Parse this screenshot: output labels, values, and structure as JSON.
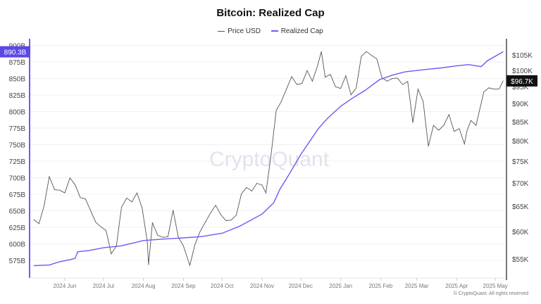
{
  "chart_data": {
    "type": "line",
    "title": "Bitcoin: Realized Cap",
    "legend": [
      "Price USD",
      "Realized Cap"
    ],
    "legend_placement": "top-center",
    "colors": {
      "price": "#555555",
      "realized_cap": "#6a5cf5",
      "left_badge": "#5b48e8",
      "right_badge": "#111111"
    },
    "watermark": "CryptoQuant",
    "footer": "© CryptoQuant. All rights reserved",
    "left_axis": {
      "label": "Realized Cap",
      "ticks": [
        "900B",
        "875B",
        "850B",
        "825B",
        "800B",
        "775B",
        "750B",
        "725B",
        "700B",
        "675B",
        "650B",
        "625B",
        "600B",
        "575B"
      ],
      "tick_values": [
        900,
        875,
        850,
        825,
        800,
        775,
        750,
        725,
        700,
        675,
        650,
        625,
        600,
        575
      ],
      "unit": "B USD",
      "current_label": "890.3B"
    },
    "right_axis": {
      "label": "Price USD",
      "scale": "log",
      "ticks": [
        "$105K",
        "$100K",
        "$95K",
        "$90K",
        "$85K",
        "$80K",
        "$75K",
        "$70K",
        "$65K",
        "$60K",
        "$55K"
      ],
      "tick_values": [
        105,
        100,
        95,
        90,
        85,
        80,
        75,
        70,
        65,
        60,
        55
      ],
      "unit": "K USD",
      "current_label": "$96.7K"
    },
    "x_ticks": [
      {
        "label": "2024 Jun",
        "date": "2024-06-01"
      },
      {
        "label": "2024 Jul",
        "date": "2024-07-01"
      },
      {
        "label": "2024 Aug",
        "date": "2024-08-01"
      },
      {
        "label": "2024 Sep",
        "date": "2024-09-01"
      },
      {
        "label": "2024 Oct",
        "date": "2024-10-01"
      },
      {
        "label": "2024 Nov",
        "date": "2024-11-01"
      },
      {
        "label": "2024 Dec",
        "date": "2024-12-01"
      },
      {
        "label": "2025 Jan",
        "date": "2025-01-01"
      },
      {
        "label": "2025 Feb",
        "date": "2025-02-01"
      },
      {
        "label": "2025 Mar",
        "date": "2025-03-01"
      },
      {
        "label": "2025 Apr",
        "date": "2025-04-01"
      },
      {
        "label": "2025 May",
        "date": "2025-05-01"
      }
    ],
    "series": [
      {
        "name": "Price USD",
        "unit": "K USD",
        "points": [
          [
            "2024-05-08",
            62.3
          ],
          [
            "2024-05-12",
            61.5
          ],
          [
            "2024-05-16",
            65.2
          ],
          [
            "2024-05-20",
            71.4
          ],
          [
            "2024-05-24",
            68.5
          ],
          [
            "2024-05-28",
            68.4
          ],
          [
            "2024-06-01",
            67.8
          ],
          [
            "2024-06-05",
            71.1
          ],
          [
            "2024-06-09",
            69.6
          ],
          [
            "2024-06-13",
            66.8
          ],
          [
            "2024-06-17",
            66.5
          ],
          [
            "2024-06-21",
            64.1
          ],
          [
            "2024-06-25",
            61.8
          ],
          [
            "2024-06-29",
            60.9
          ],
          [
            "2024-07-03",
            60.2
          ],
          [
            "2024-07-07",
            55.9
          ],
          [
            "2024-07-11",
            57.3
          ],
          [
            "2024-07-15",
            64.8
          ],
          [
            "2024-07-19",
            66.7
          ],
          [
            "2024-07-23",
            65.9
          ],
          [
            "2024-07-27",
            67.8
          ],
          [
            "2024-07-31",
            64.6
          ],
          [
            "2024-08-04",
            58.1
          ],
          [
            "2024-08-05",
            54.0
          ],
          [
            "2024-08-08",
            61.7
          ],
          [
            "2024-08-12",
            59.3
          ],
          [
            "2024-08-16",
            58.9
          ],
          [
            "2024-08-20",
            59.0
          ],
          [
            "2024-08-24",
            64.2
          ],
          [
            "2024-08-28",
            59.0
          ],
          [
            "2024-09-01",
            57.3
          ],
          [
            "2024-09-06",
            53.9
          ],
          [
            "2024-09-10",
            57.6
          ],
          [
            "2024-09-14",
            60.0
          ],
          [
            "2024-09-18",
            61.8
          ],
          [
            "2024-09-22",
            63.6
          ],
          [
            "2024-09-26",
            65.2
          ],
          [
            "2024-09-30",
            63.3
          ],
          [
            "2024-10-04",
            62.1
          ],
          [
            "2024-10-08",
            62.2
          ],
          [
            "2024-10-12",
            63.2
          ],
          [
            "2024-10-16",
            67.6
          ],
          [
            "2024-10-20",
            69.0
          ],
          [
            "2024-10-24",
            68.2
          ],
          [
            "2024-10-28",
            69.9
          ],
          [
            "2024-11-01",
            69.5
          ],
          [
            "2024-11-04",
            67.8
          ],
          [
            "2024-11-08",
            76.5
          ],
          [
            "2024-11-12",
            88.0
          ],
          [
            "2024-11-16",
            90.6
          ],
          [
            "2024-11-20",
            94.3
          ],
          [
            "2024-11-24",
            98.0
          ],
          [
            "2024-11-28",
            95.6
          ],
          [
            "2024-12-02",
            95.9
          ],
          [
            "2024-12-06",
            99.9
          ],
          [
            "2024-12-10",
            96.6
          ],
          [
            "2024-12-14",
            101.4
          ],
          [
            "2024-12-17",
            106.1
          ],
          [
            "2024-12-20",
            97.8
          ],
          [
            "2024-12-24",
            98.7
          ],
          [
            "2024-12-28",
            94.9
          ],
          [
            "2025-01-01",
            94.4
          ],
          [
            "2025-01-05",
            98.3
          ],
          [
            "2025-01-09",
            92.5
          ],
          [
            "2025-01-13",
            94.5
          ],
          [
            "2025-01-17",
            104.5
          ],
          [
            "2025-01-21",
            106.1
          ],
          [
            "2025-01-25",
            104.8
          ],
          [
            "2025-01-29",
            103.7
          ],
          [
            "2025-02-02",
            97.7
          ],
          [
            "2025-02-06",
            96.6
          ],
          [
            "2025-02-10",
            97.4
          ],
          [
            "2025-02-14",
            97.6
          ],
          [
            "2025-02-18",
            95.6
          ],
          [
            "2025-02-22",
            96.5
          ],
          [
            "2025-02-26",
            84.7
          ],
          [
            "2025-03-02",
            94.2
          ],
          [
            "2025-03-06",
            90.6
          ],
          [
            "2025-03-10",
            78.6
          ],
          [
            "2025-03-14",
            84.0
          ],
          [
            "2025-03-18",
            82.7
          ],
          [
            "2025-03-22",
            84.0
          ],
          [
            "2025-03-26",
            86.9
          ],
          [
            "2025-03-30",
            82.4
          ],
          [
            "2025-04-03",
            83.1
          ],
          [
            "2025-04-07",
            79.2
          ],
          [
            "2025-04-09",
            82.6
          ],
          [
            "2025-04-12",
            85.3
          ],
          [
            "2025-04-16",
            84.0
          ],
          [
            "2025-04-22",
            93.4
          ],
          [
            "2025-04-26",
            94.6
          ],
          [
            "2025-04-30",
            94.2
          ],
          [
            "2025-05-04",
            94.3
          ],
          [
            "2025-05-07",
            96.7
          ]
        ]
      },
      {
        "name": "Realized Cap",
        "unit": "B USD",
        "points": [
          [
            "2024-05-08",
            567
          ],
          [
            "2024-05-20",
            568
          ],
          [
            "2024-05-28",
            573
          ],
          [
            "2024-06-05",
            576
          ],
          [
            "2024-06-09",
            578
          ],
          [
            "2024-06-11",
            588
          ],
          [
            "2024-06-20",
            590
          ],
          [
            "2024-07-01",
            594
          ],
          [
            "2024-07-15",
            597
          ],
          [
            "2024-08-01",
            605
          ],
          [
            "2024-08-15",
            607
          ],
          [
            "2024-09-01",
            609
          ],
          [
            "2024-09-15",
            611
          ],
          [
            "2024-10-01",
            616
          ],
          [
            "2024-10-15",
            627
          ],
          [
            "2024-11-01",
            645
          ],
          [
            "2024-11-10",
            662
          ],
          [
            "2024-11-15",
            683
          ],
          [
            "2024-11-22",
            705
          ],
          [
            "2024-12-01",
            735
          ],
          [
            "2024-12-08",
            755
          ],
          [
            "2024-12-15",
            775
          ],
          [
            "2024-12-22",
            790
          ],
          [
            "2025-01-01",
            808
          ],
          [
            "2025-01-10",
            820
          ],
          [
            "2025-01-20",
            832
          ],
          [
            "2025-01-31",
            848
          ],
          [
            "2025-02-10",
            855
          ],
          [
            "2025-02-20",
            860
          ],
          [
            "2025-03-01",
            862
          ],
          [
            "2025-03-10",
            864
          ],
          [
            "2025-03-20",
            866
          ],
          [
            "2025-04-01",
            869
          ],
          [
            "2025-04-10",
            871
          ],
          [
            "2025-04-20",
            868
          ],
          [
            "2025-04-25",
            877
          ],
          [
            "2025-05-07",
            890.3
          ]
        ]
      }
    ]
  }
}
